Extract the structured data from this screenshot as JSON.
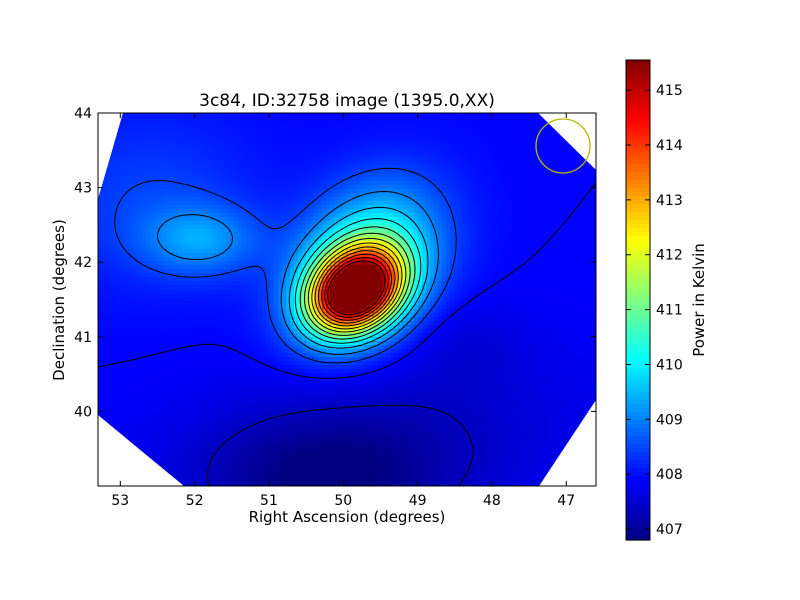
{
  "chart_data": {
    "type": "heatmap",
    "title": "3c84, ID:32758 image (1395.0,XX)",
    "xlabel": "Right Ascension (degrees)",
    "ylabel": "Declination (degrees)",
    "xlim": [
      53.3,
      46.6
    ],
    "ylim": [
      39.0,
      44.0
    ],
    "x_ticks": [
      53,
      52,
      51,
      50,
      49,
      48,
      47
    ],
    "y_ticks": [
      40,
      41,
      42,
      43,
      44
    ],
    "colorbar": {
      "label": "Power in Kelvin",
      "min": 406.8,
      "max": 415.55,
      "ticks": [
        407,
        408,
        409,
        410,
        411,
        412,
        413,
        414,
        415
      ],
      "colormap": "jet"
    },
    "background_level": 407.9,
    "sources": [
      {
        "ra": 49.9,
        "dec": 41.6,
        "peak": 415.5,
        "shape": "bright central source"
      },
      {
        "ra": 52.05,
        "dec": 42.25,
        "peak": 409.3,
        "shape": "secondary blob"
      },
      {
        "ra": 50.2,
        "dec": 39.1,
        "peak": 406.9,
        "shape": "low region"
      }
    ],
    "beam": {
      "ra": 47.05,
      "dec": 43.55,
      "color": "#b8b800"
    },
    "grid": false
  }
}
